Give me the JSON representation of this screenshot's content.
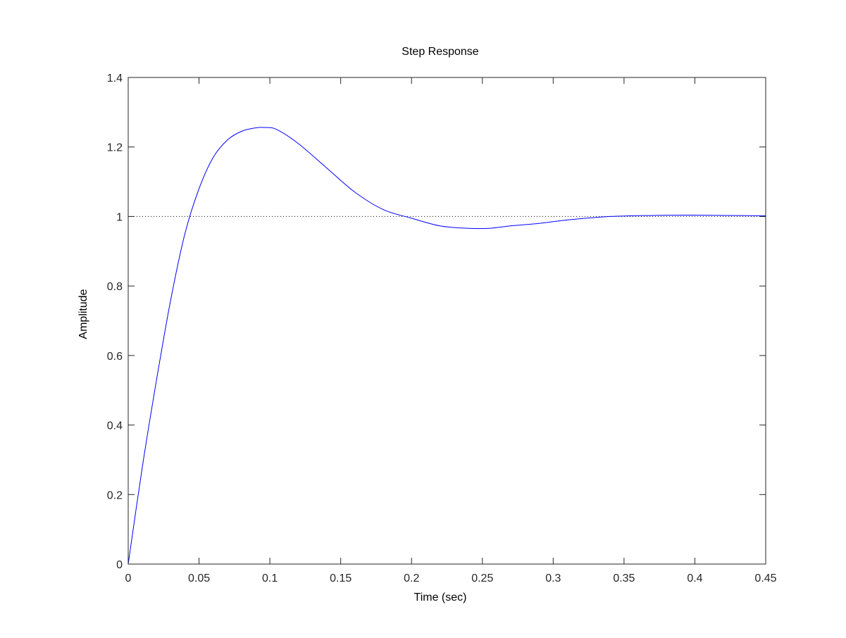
{
  "chart_data": {
    "type": "line",
    "title": "Step Response",
    "xlabel": "Time (sec)",
    "ylabel": "Amplitude",
    "xlim": [
      0,
      0.45
    ],
    "ylim": [
      0,
      1.4
    ],
    "xticks": [
      0,
      0.05,
      0.1,
      0.15,
      0.2,
      0.25,
      0.3,
      0.35,
      0.4,
      0.45
    ],
    "xtick_labels": [
      "0",
      "0.05",
      "0.1",
      "0.15",
      "0.2",
      "0.25",
      "0.3",
      "0.35",
      "0.4",
      "0.45"
    ],
    "yticks": [
      0,
      0.2,
      0.4,
      0.6,
      0.8,
      1.0,
      1.2,
      1.4
    ],
    "ytick_labels": [
      "0",
      "0.2",
      "0.4",
      "0.6",
      "0.8",
      "1",
      "1.2",
      "1.4"
    ],
    "grid": false,
    "legend": "none",
    "reference_line": {
      "y": 1.0,
      "style": "dotted",
      "color": "#000000"
    },
    "series": [
      {
        "color": "#0000ff",
        "x": [
          0,
          0.01,
          0.02,
          0.03,
          0.04,
          0.05,
          0.06,
          0.07,
          0.08,
          0.09,
          0.097,
          0.105,
          0.12,
          0.14,
          0.16,
          0.18,
          0.2,
          0.22,
          0.24,
          0.255,
          0.27,
          0.29,
          0.31,
          0.34,
          0.37,
          0.4,
          0.42,
          0.45
        ],
        "y": [
          0,
          0.28,
          0.53,
          0.76,
          0.95,
          1.08,
          1.17,
          1.22,
          1.245,
          1.255,
          1.256,
          1.25,
          1.21,
          1.14,
          1.07,
          1.02,
          0.995,
          0.973,
          0.966,
          0.966,
          0.973,
          0.98,
          0.99,
          1.0,
          1.003,
          1.004,
          1.003,
          1.002
        ]
      }
    ]
  }
}
